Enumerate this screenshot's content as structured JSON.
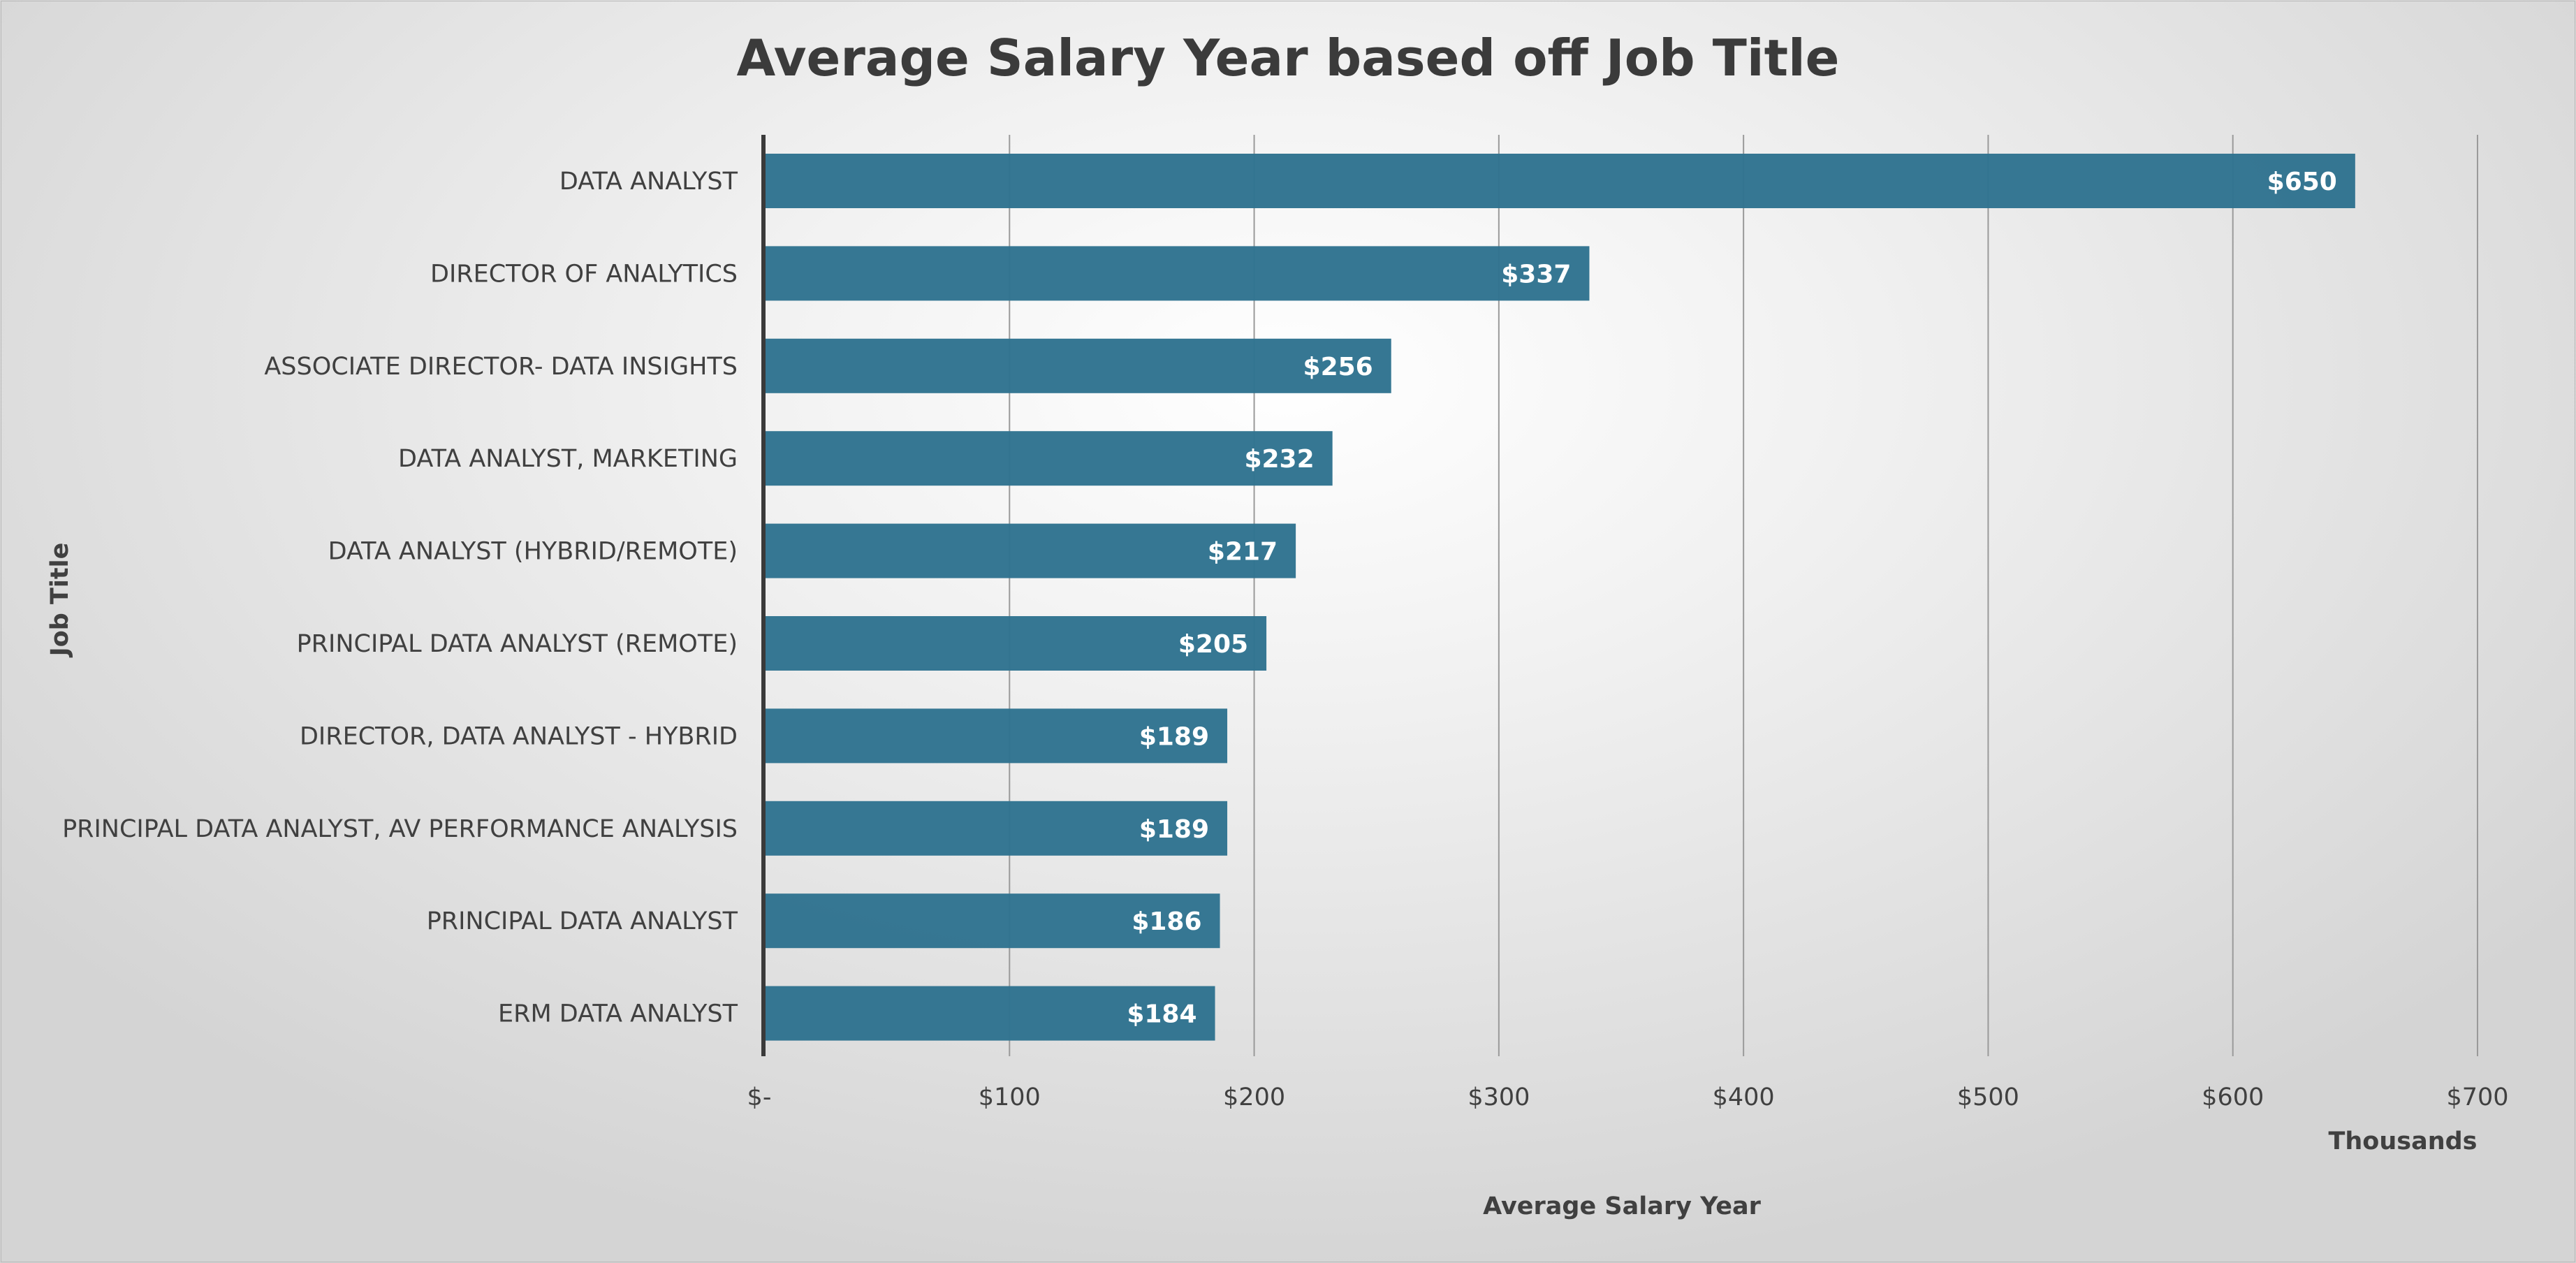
{
  "chart_data": {
    "type": "bar",
    "orientation": "horizontal",
    "title": "Average Salary Year based off Job Title",
    "xlabel": "Average Salary Year",
    "ylabel": "Job Title",
    "x_unit_label": "Thousands",
    "xlim": [
      0,
      700
    ],
    "x_ticks": [
      0,
      100,
      200,
      300,
      400,
      500,
      600,
      700
    ],
    "x_tick_labels": [
      "$-",
      "$100",
      "$200",
      "$300",
      "$400",
      "$500",
      "$600",
      "$700"
    ],
    "grid": true,
    "legend": "none",
    "bar_color": "#2f7390",
    "categories": [
      "DATA ANALYST",
      "DIRECTOR OF ANALYTICS",
      "ASSOCIATE DIRECTOR- DATA INSIGHTS",
      "DATA ANALYST, MARKETING",
      "DATA ANALYST (HYBRID/REMOTE)",
      "PRINCIPAL DATA ANALYST (REMOTE)",
      "DIRECTOR, DATA ANALYST - HYBRID",
      "PRINCIPAL DATA ANALYST, AV PERFORMANCE ANALYSIS",
      "PRINCIPAL DATA ANALYST",
      "ERM DATA ANALYST"
    ],
    "values": [
      650,
      337,
      256,
      232,
      217,
      205,
      189,
      189,
      186,
      184
    ],
    "data_labels": [
      "$650",
      "$337",
      "$256",
      "$232",
      "$217",
      "$205",
      "$189",
      "$189",
      "$186",
      "$184"
    ]
  }
}
